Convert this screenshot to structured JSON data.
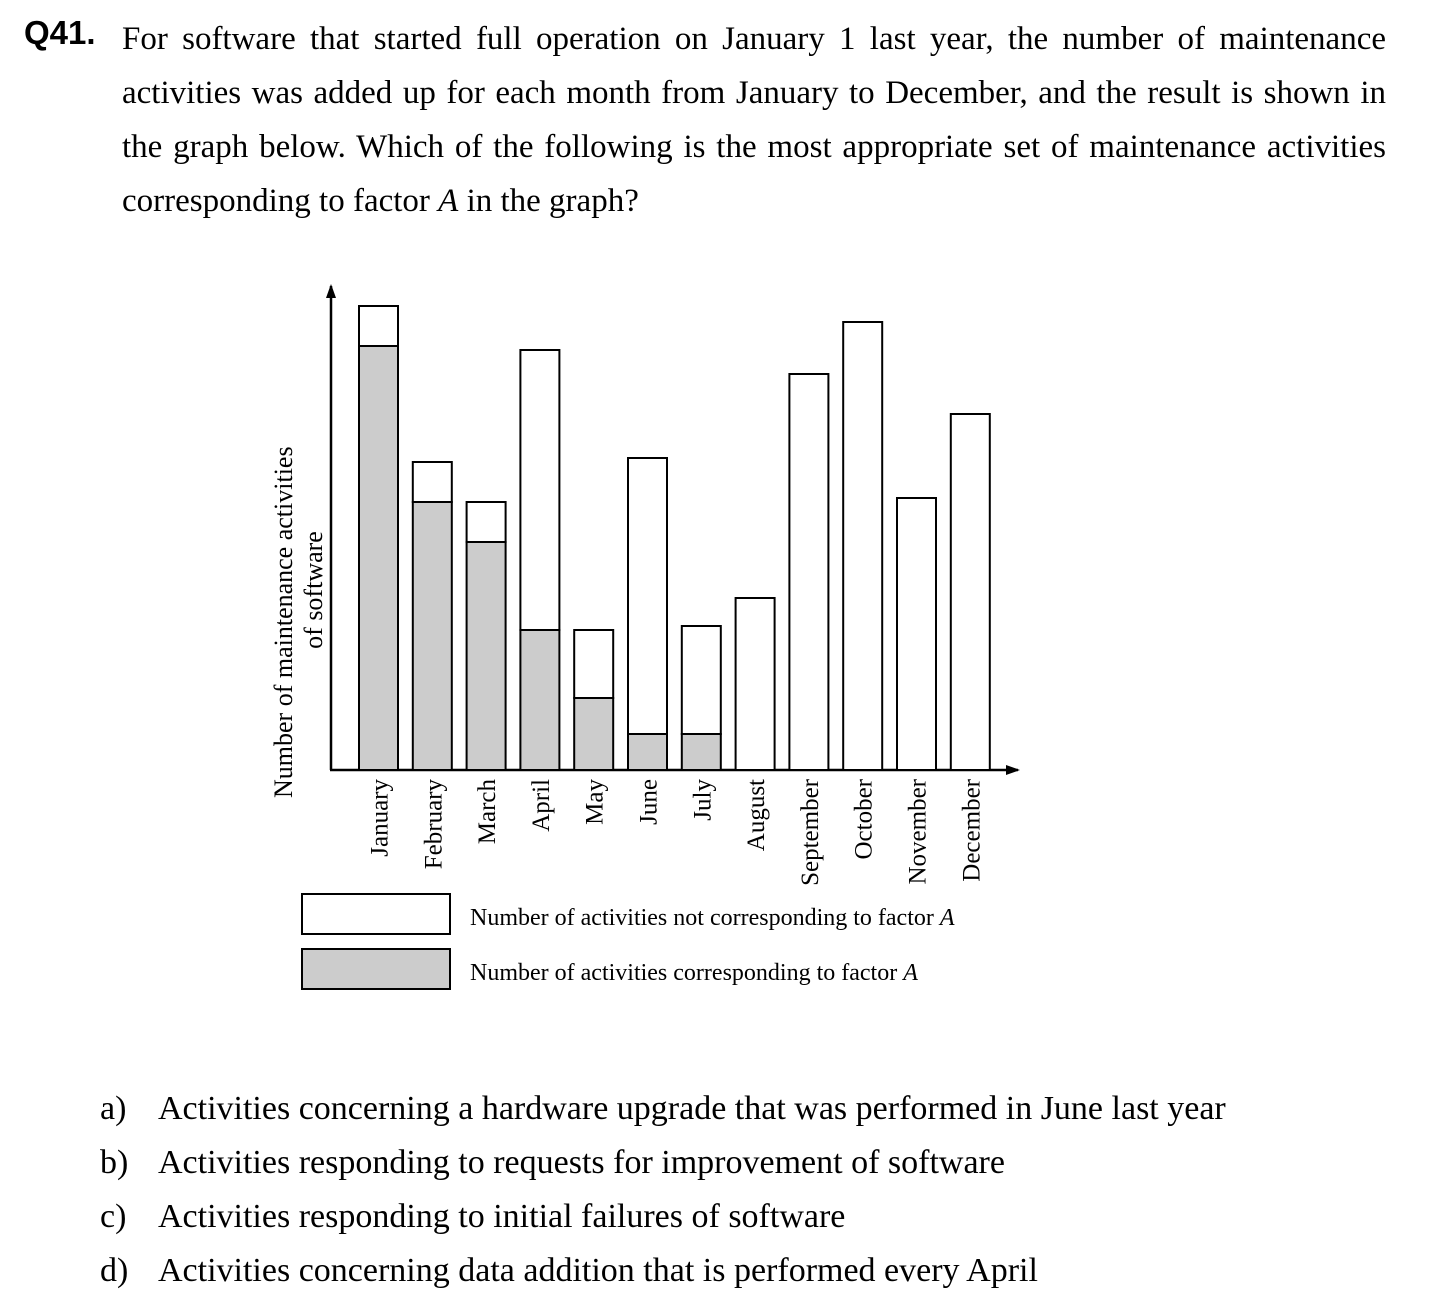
{
  "question": {
    "number": "Q41.",
    "text_before_italic": "For software that started full operation on January 1 last year, the number of maintenance activities was added up for each month from January to December, and the result is shown in the graph below.  Which of the following is the most appropriate set of maintenance activities corresponding to factor ",
    "italic_term": "A",
    "text_after_italic": " in the graph?"
  },
  "chart_data": {
    "type": "bar",
    "stacked": true,
    "ylabel_line1": "Number of maintenance activities",
    "ylabel_line2": "of software",
    "categories": [
      "January",
      "February",
      "March",
      "April",
      "May",
      "June",
      "July",
      "August",
      "September",
      "October",
      "November",
      "December"
    ],
    "series": [
      {
        "name": "Number of activities corresponding to factor",
        "name_italic": "A",
        "color": "#cccccc",
        "values": [
          106,
          67,
          57,
          35,
          18,
          9,
          9,
          0,
          0,
          0,
          0,
          0
        ]
      },
      {
        "name": "Number of activities not corresponding to factor",
        "name_italic": "A",
        "color": "#ffffff",
        "values": [
          10,
          10,
          10,
          70,
          17,
          69,
          27,
          43,
          99,
          112,
          68,
          89
        ]
      }
    ],
    "ylim": [
      0,
      120
    ],
    "legend_position": "bottom"
  },
  "options": [
    {
      "letter": "a)",
      "text": "Activities concerning a hardware upgrade that was performed in June last year"
    },
    {
      "letter": "b)",
      "text": "Activities responding to requests for improvement of software"
    },
    {
      "letter": "c)",
      "text": "Activities responding to initial failures of software"
    },
    {
      "letter": "d)",
      "text": "Activities concerning data addition that is performed every April"
    }
  ]
}
